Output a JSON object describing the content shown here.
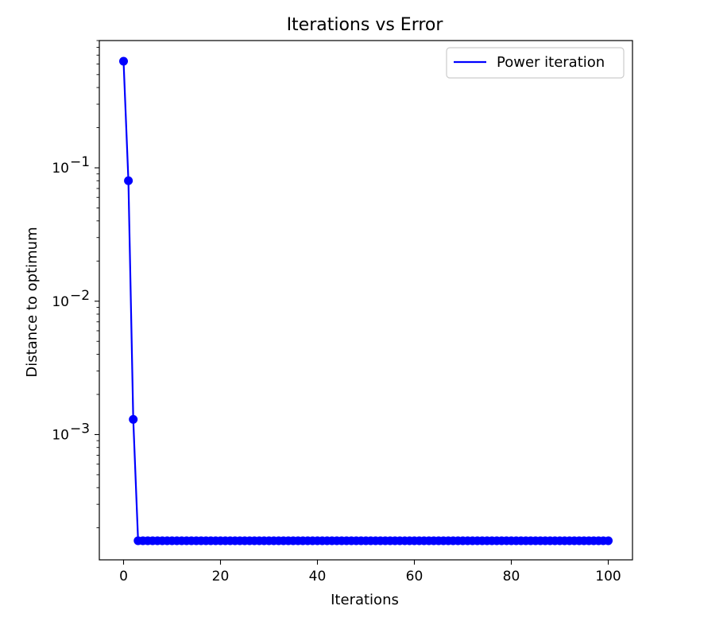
{
  "chart_data": {
    "type": "line",
    "title": "Iterations vs Error",
    "xlabel": "Iterations",
    "ylabel": "Distance to optimum",
    "yscale": "log",
    "xlim": [
      -5,
      105
    ],
    "ylim": [
      0.000115,
      0.9
    ],
    "xticks": [
      {
        "value": 0,
        "label": "0"
      },
      {
        "value": 20,
        "label": "20"
      },
      {
        "value": 40,
        "label": "40"
      },
      {
        "value": 60,
        "label": "60"
      },
      {
        "value": 80,
        "label": "80"
      },
      {
        "value": 100,
        "label": "100"
      }
    ],
    "yticks": [
      {
        "value": 0.001,
        "base": "10",
        "exp": "−3"
      },
      {
        "value": 0.01,
        "base": "10",
        "exp": "−2"
      },
      {
        "value": 0.1,
        "base": "10",
        "exp": "−1"
      }
    ],
    "grid": false,
    "legend_position": "top-right",
    "series": [
      {
        "name": "Power iteration",
        "color": "#0000ff",
        "marker": "circle",
        "head": [
          {
            "x": 0,
            "y": 0.63
          },
          {
            "x": 1,
            "y": 0.08
          },
          {
            "x": 2,
            "y": 0.0013
          }
        ],
        "plateau": {
          "x_from": 3,
          "x_to": 100,
          "y": 0.00016
        }
      }
    ]
  }
}
